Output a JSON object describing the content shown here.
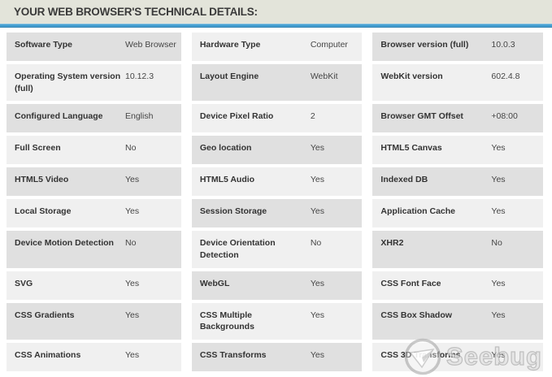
{
  "header": {
    "title": "YOUR WEB BROWSER'S TECHNICAL DETAILS:"
  },
  "colors": {
    "accent_blue": "#459fd1",
    "header_bg": "#e3e4da",
    "cell_dark": "#e0e0e0",
    "cell_light": "#f0f0f0",
    "label_text": "#333333",
    "value_text": "#464646"
  },
  "watermark": {
    "text": "Seebug",
    "logo_icon": "paper-plane-circle"
  },
  "table": {
    "rows": [
      [
        {
          "label": "Software Type",
          "value": "Web Browser"
        },
        {
          "label": "Hardware Type",
          "value": "Computer"
        },
        {
          "label": "Browser version (full)",
          "value": "10.0.3"
        }
      ],
      [
        {
          "label": "Operating System version (full)",
          "value": "10.12.3"
        },
        {
          "label": "Layout Engine",
          "value": "WebKit"
        },
        {
          "label": "WebKit version",
          "value": "602.4.8"
        }
      ],
      [
        {
          "label": "Configured Language",
          "value": "English"
        },
        {
          "label": "Device Pixel Ratio",
          "value": "2"
        },
        {
          "label": "Browser GMT Offset",
          "value": "+08:00"
        }
      ],
      [
        {
          "label": "Full Screen",
          "value": "No"
        },
        {
          "label": "Geo location",
          "value": "Yes"
        },
        {
          "label": "HTML5 Canvas",
          "value": "Yes"
        }
      ],
      [
        {
          "label": "HTML5 Video",
          "value": "Yes"
        },
        {
          "label": "HTML5 Audio",
          "value": "Yes"
        },
        {
          "label": "Indexed DB",
          "value": "Yes"
        }
      ],
      [
        {
          "label": "Local Storage",
          "value": "Yes"
        },
        {
          "label": "Session Storage",
          "value": "Yes"
        },
        {
          "label": "Application Cache",
          "value": "Yes"
        }
      ],
      [
        {
          "label": "Device Motion Detection",
          "value": "No"
        },
        {
          "label": "Device Orientation Detection",
          "value": "No"
        },
        {
          "label": "XHR2",
          "value": "No"
        }
      ],
      [
        {
          "label": "SVG",
          "value": "Yes"
        },
        {
          "label": "WebGL",
          "value": "Yes"
        },
        {
          "label": "CSS Font Face",
          "value": "Yes"
        }
      ],
      [
        {
          "label": "CSS Gradients",
          "value": "Yes"
        },
        {
          "label": "CSS Multiple Backgrounds",
          "value": "Yes"
        },
        {
          "label": "CSS Box Shadow",
          "value": "Yes"
        }
      ],
      [
        {
          "label": "CSS Animations",
          "value": "Yes"
        },
        {
          "label": "CSS Transforms",
          "value": "Yes"
        },
        {
          "label": "CSS 3D Transforms",
          "value": "Yes"
        }
      ]
    ]
  }
}
